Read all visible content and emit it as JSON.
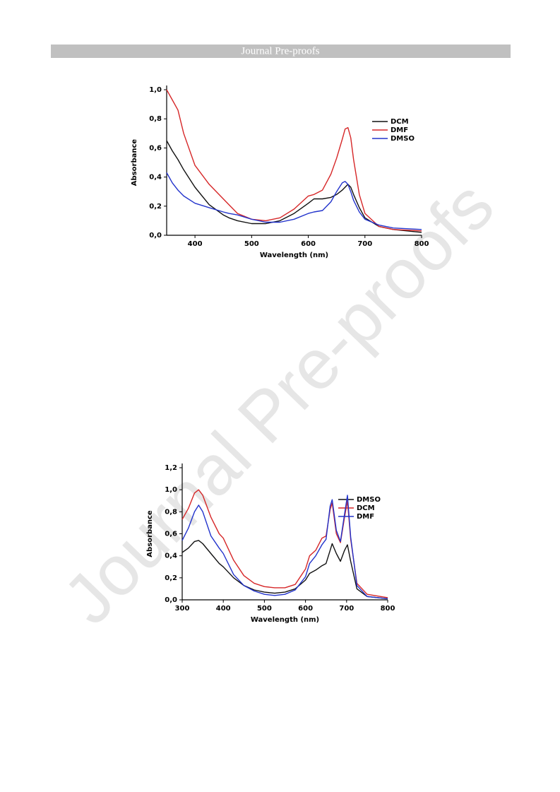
{
  "header": {
    "title": "Journal Pre-proofs"
  },
  "watermark": "Journal Pre-proofs",
  "chart_data": [
    {
      "type": "line",
      "xlabel": "Wavelength (nm)",
      "ylabel": "Absorbance",
      "x": [
        350,
        360,
        370,
        380,
        400,
        425,
        450,
        460,
        475,
        500,
        525,
        550,
        575,
        600,
        610,
        625,
        640,
        650,
        660,
        665,
        670,
        675,
        680,
        690,
        700,
        725,
        750,
        800
      ],
      "series": [
        {
          "name": "DCM",
          "color": "#111111",
          "values": [
            0.65,
            0.58,
            0.52,
            0.45,
            0.33,
            0.21,
            0.14,
            0.12,
            0.1,
            0.08,
            0.08,
            0.1,
            0.15,
            0.22,
            0.25,
            0.25,
            0.26,
            0.28,
            0.31,
            0.33,
            0.35,
            0.33,
            0.28,
            0.19,
            0.12,
            0.06,
            0.04,
            0.02
          ]
        },
        {
          "name": "DMF",
          "color": "#d62728",
          "values": [
            1.0,
            0.93,
            0.86,
            0.7,
            0.48,
            0.35,
            0.25,
            0.21,
            0.15,
            0.11,
            0.1,
            0.12,
            0.18,
            0.27,
            0.28,
            0.31,
            0.42,
            0.53,
            0.66,
            0.73,
            0.74,
            0.67,
            0.52,
            0.28,
            0.15,
            0.06,
            0.04,
            0.03
          ]
        },
        {
          "name": "DMSO",
          "color": "#2233cc",
          "values": [
            0.43,
            0.36,
            0.31,
            0.27,
            0.22,
            0.19,
            0.16,
            0.15,
            0.14,
            0.11,
            0.09,
            0.09,
            0.11,
            0.15,
            0.16,
            0.17,
            0.23,
            0.3,
            0.36,
            0.37,
            0.35,
            0.3,
            0.24,
            0.16,
            0.11,
            0.07,
            0.05,
            0.04
          ]
        }
      ],
      "xlim": [
        350,
        800
      ],
      "xticks": [
        400,
        500,
        600,
        700,
        800
      ],
      "ylim": [
        0,
        1.0
      ],
      "yticks": [
        {
          "value": 0,
          "label": "0,0"
        },
        {
          "value": 0.2,
          "label": "0,2"
        },
        {
          "value": 0.4,
          "label": "0,4"
        },
        {
          "value": 0.6,
          "label": "0,6"
        },
        {
          "value": 0.8,
          "label": "0,8"
        },
        {
          "value": 1.0,
          "label": "1,0"
        }
      ],
      "legend": "upper right"
    },
    {
      "type": "line",
      "xlabel": "Wavelength (nm)",
      "ylabel": "Absorbance",
      "x": [
        300,
        315,
        330,
        340,
        350,
        370,
        390,
        400,
        425,
        450,
        475,
        500,
        525,
        550,
        575,
        600,
        610,
        625,
        640,
        650,
        660,
        665,
        675,
        685,
        695,
        702,
        710,
        725,
        750,
        800
      ],
      "series": [
        {
          "name": "DMSO",
          "color": "#111111",
          "values": [
            0.43,
            0.47,
            0.53,
            0.54,
            0.51,
            0.42,
            0.33,
            0.3,
            0.2,
            0.13,
            0.09,
            0.07,
            0.06,
            0.07,
            0.1,
            0.18,
            0.24,
            0.27,
            0.31,
            0.33,
            0.45,
            0.51,
            0.42,
            0.35,
            0.45,
            0.5,
            0.35,
            0.1,
            0.03,
            0.01
          ]
        },
        {
          "name": "DCM",
          "color": "#d62728",
          "values": [
            0.73,
            0.83,
            0.97,
            1.0,
            0.95,
            0.75,
            0.6,
            0.56,
            0.36,
            0.22,
            0.15,
            0.12,
            0.11,
            0.11,
            0.14,
            0.28,
            0.4,
            0.45,
            0.56,
            0.58,
            0.82,
            0.88,
            0.6,
            0.52,
            0.75,
            0.9,
            0.55,
            0.15,
            0.05,
            0.02
          ]
        },
        {
          "name": "DMF",
          "color": "#2233cc",
          "values": [
            0.54,
            0.65,
            0.8,
            0.86,
            0.8,
            0.58,
            0.47,
            0.42,
            0.23,
            0.13,
            0.08,
            0.05,
            0.04,
            0.05,
            0.09,
            0.21,
            0.33,
            0.4,
            0.5,
            0.55,
            0.85,
            0.91,
            0.63,
            0.53,
            0.78,
            0.95,
            0.57,
            0.13,
            0.03,
            0.01
          ]
        }
      ],
      "xlim": [
        300,
        800
      ],
      "xticks": [
        300,
        400,
        500,
        600,
        700,
        800
      ],
      "ylim": [
        0,
        1.2
      ],
      "yticks": [
        {
          "value": 0,
          "label": "0,0"
        },
        {
          "value": 0.2,
          "label": "0,2"
        },
        {
          "value": 0.4,
          "label": "0,4"
        },
        {
          "value": 0.6,
          "label": "0,6"
        },
        {
          "value": 0.8,
          "label": "0,8"
        },
        {
          "value": 1.0,
          "label": "1,0"
        },
        {
          "value": 1.2,
          "label": "1,2"
        }
      ],
      "legend": "upper right"
    }
  ]
}
